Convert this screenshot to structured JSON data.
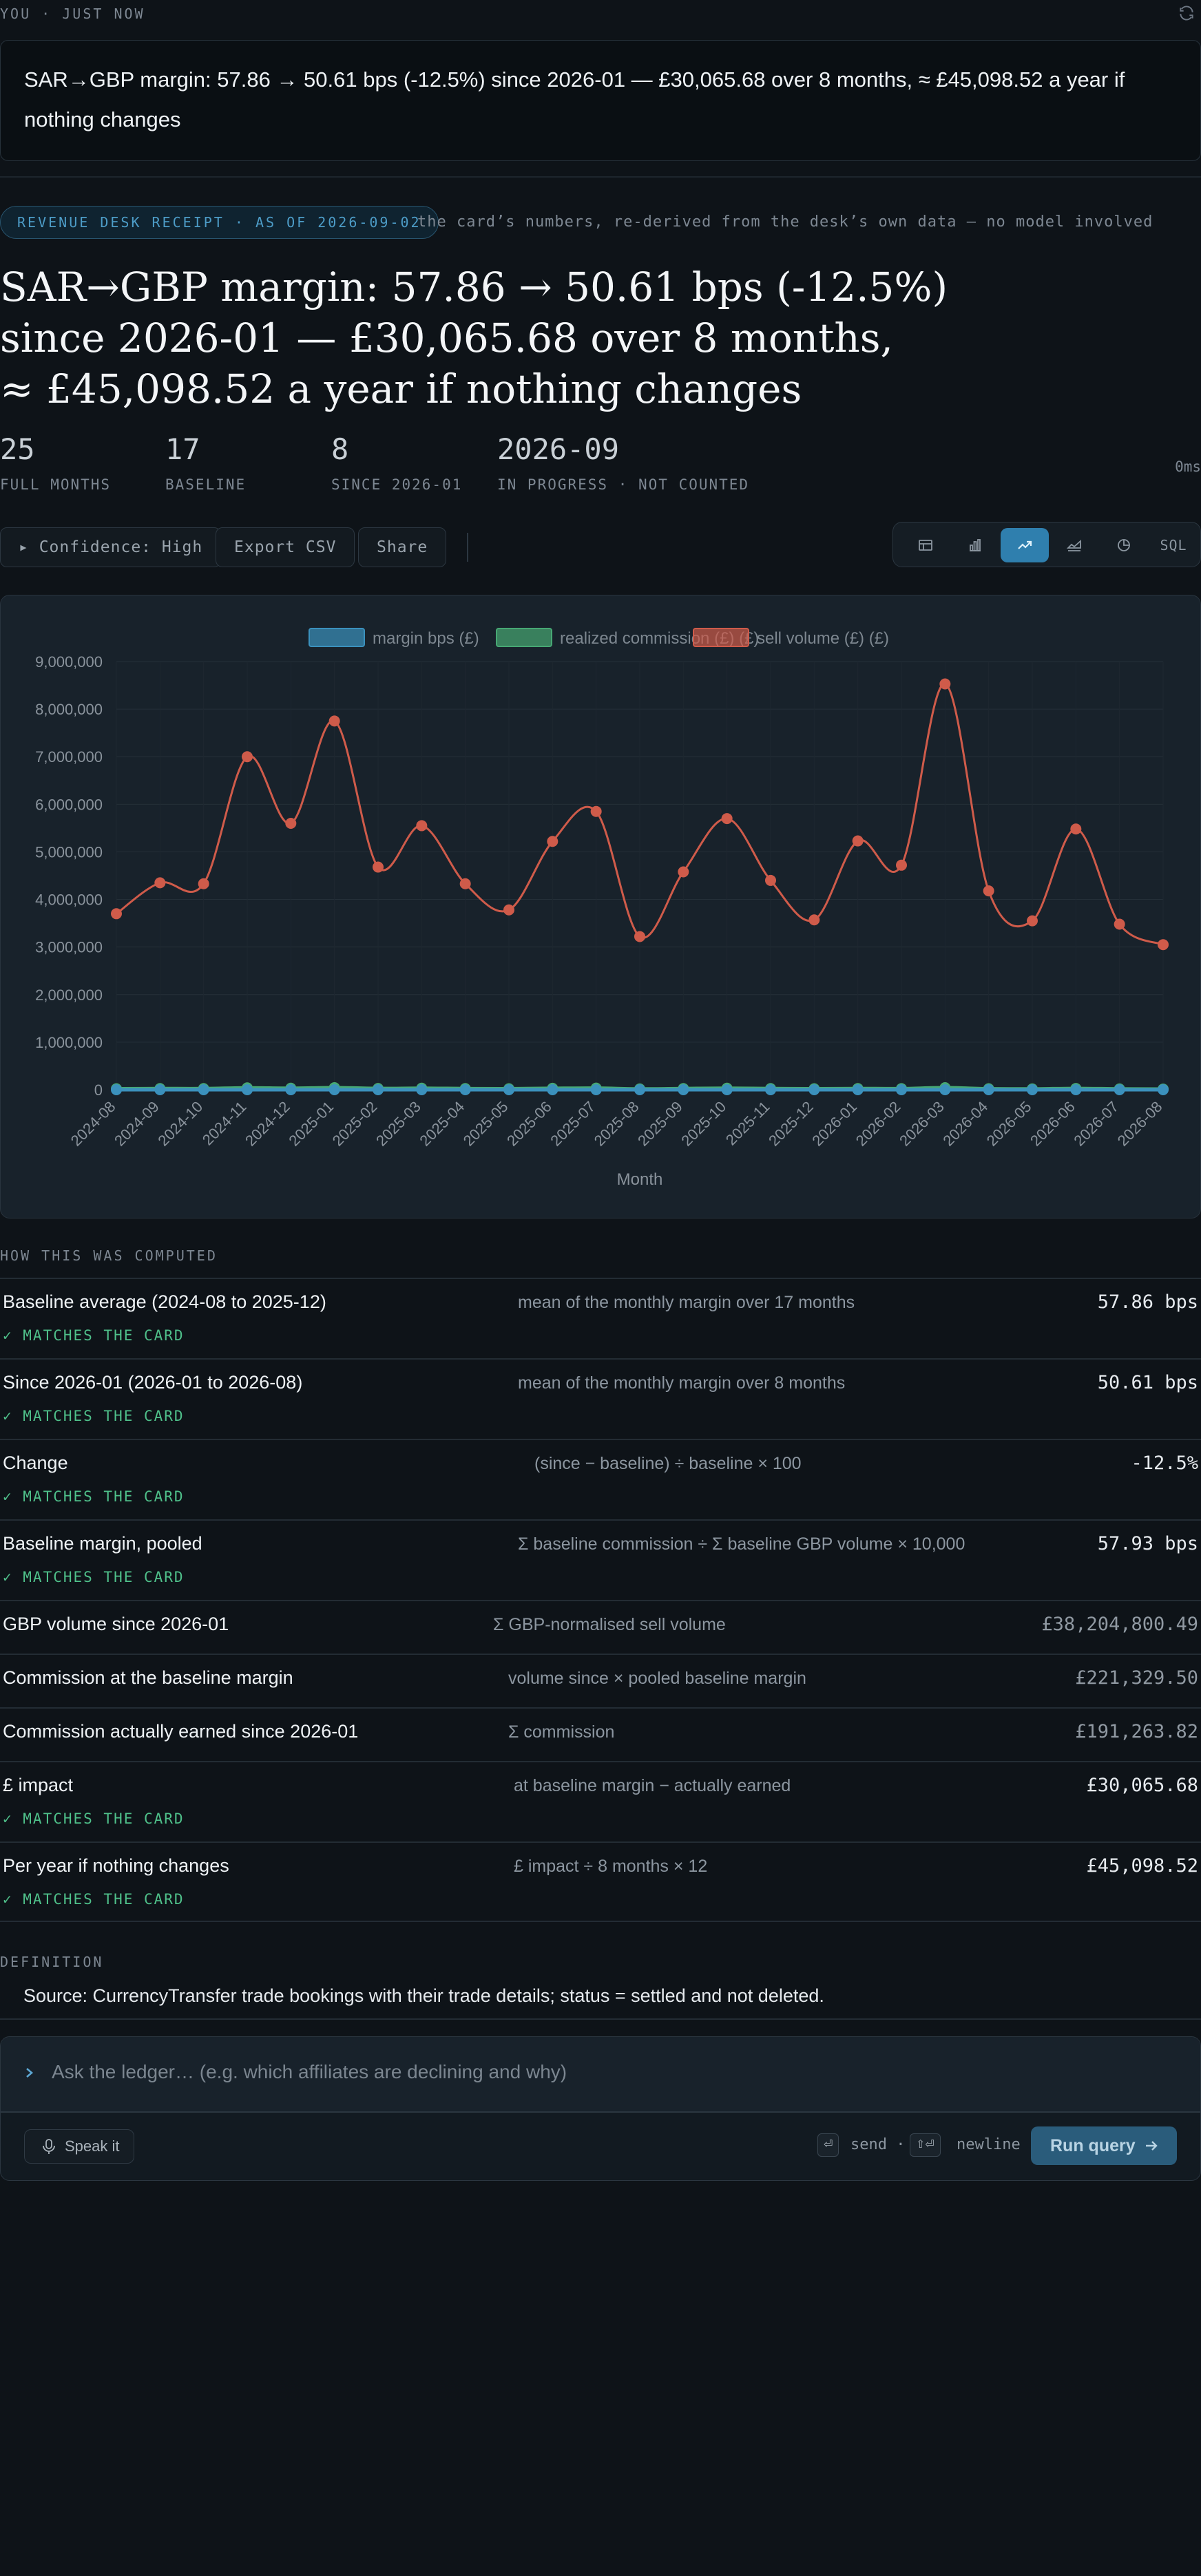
{
  "message": {
    "meta": "YOU · JUST NOW",
    "text": "SAR→GBP margin: 57.86 → 50.61 bps (-12.5%) since 2026-01 — £30,065.68 over 8 months, ≈ £45,098.52 a year if nothing changes"
  },
  "receipt": {
    "pill": "REVENUE DESK RECEIPT · AS OF 2026-09-02",
    "note": "the card’s numbers, re-derived from the desk’s own data — no model involved",
    "headline_1": "SAR→GBP margin: 57.86 → 50.61 bps (-12.5%)",
    "headline_2": "since 2026-01 — £30,065.68 over 8 months,",
    "headline_3": "≈ £45,098.52 a year if nothing changes",
    "stats": [
      {
        "value": "25",
        "label": "FULL MONTHS"
      },
      {
        "value": "17",
        "label": "BASELINE"
      },
      {
        "value": "8",
        "label": "SINCE 2026-01"
      },
      {
        "value": "2026-09",
        "label": "IN PROGRESS · NOT COUNTED"
      }
    ],
    "timing": "0ms"
  },
  "actions": {
    "confidence": "▸ Confidence: High",
    "export": "Export CSV",
    "share": "Share",
    "views": [
      {
        "icon": "table-icon",
        "active": false
      },
      {
        "icon": "bar-chart-icon",
        "active": false
      },
      {
        "icon": "line-chart-icon",
        "active": true
      },
      {
        "icon": "area-chart-icon",
        "active": false
      },
      {
        "icon": "pie-chart-icon",
        "active": false
      }
    ],
    "sql_label": "SQL"
  },
  "chart_data": {
    "type": "line",
    "x": [
      "2024-08",
      "2024-09",
      "2024-10",
      "2024-11",
      "2024-12",
      "2025-01",
      "2025-02",
      "2025-03",
      "2025-04",
      "2025-05",
      "2025-06",
      "2025-07",
      "2025-08",
      "2025-09",
      "2025-10",
      "2025-11",
      "2025-12",
      "2026-01",
      "2026-02",
      "2026-03",
      "2026-04",
      "2026-05",
      "2026-06",
      "2026-07",
      "2026-08"
    ],
    "series": [
      {
        "name": "margin bps (£)",
        "color": "#3b91bd",
        "values": [
          58,
          58,
          58,
          58,
          58,
          58,
          58,
          58,
          58,
          58,
          58,
          58,
          58,
          58,
          58,
          58,
          58,
          51,
          51,
          51,
          51,
          51,
          51,
          51,
          51
        ]
      },
      {
        "name": "realized commission (£) (£)",
        "color": "#47a874",
        "values": [
          21000,
          25000,
          25000,
          40000,
          32000,
          44000,
          27000,
          32000,
          25000,
          22000,
          30000,
          34000,
          18000,
          26000,
          33000,
          25000,
          21000,
          26000,
          24000,
          43000,
          21000,
          18000,
          28000,
          18000,
          15000
        ]
      },
      {
        "name": "sell volume (£) (£)",
        "color": "#cf5b4a",
        "values": [
          3700000,
          4350000,
          4330000,
          7000000,
          5600000,
          7750000,
          4680000,
          5550000,
          4330000,
          3780000,
          5220000,
          5850000,
          3220000,
          4580000,
          5700000,
          4400000,
          3570000,
          5230000,
          4720000,
          8530000,
          4180000,
          3550000,
          5480000,
          3480000,
          3050000
        ]
      }
    ],
    "xlabel": "Month",
    "ylabel": "",
    "ylim": [
      0,
      9000000
    ],
    "yticks": [
      "0",
      "1,000,000",
      "2,000,000",
      "3,000,000",
      "4,000,000",
      "5,000,000",
      "6,000,000",
      "7,000,000",
      "8,000,000",
      "9,000,000"
    ],
    "grid": true,
    "legend": "top-center"
  },
  "computed": {
    "section_label": "HOW THIS WAS COMPUTED",
    "rows": [
      {
        "label": "Baseline average (2024-08 to 2025-12)",
        "method": "mean of the monthly margin over 17 months",
        "value": "57.86 bps",
        "match": "✓ MATCHES THE CARD"
      },
      {
        "label": "Since 2026-01 (2026-01 to 2026-08)",
        "method": "mean of the monthly margin over 8 months",
        "value": "50.61 bps",
        "match": "✓ MATCHES THE CARD"
      },
      {
        "label": "Change",
        "method": "(since − baseline) ÷ baseline × 100",
        "value": "-12.5%",
        "match": "✓ MATCHES THE CARD"
      },
      {
        "label": "Baseline margin, pooled",
        "method": "Σ baseline commission ÷ Σ baseline GBP volume × 10,000",
        "value": "57.93 bps",
        "match": "✓ MATCHES THE CARD"
      },
      {
        "label": "GBP volume since 2026-01",
        "method": "Σ GBP-normalised sell volume",
        "value": "£38,204,800.49",
        "match": ""
      },
      {
        "label": "Commission at the baseline margin",
        "method": "volume since × pooled baseline margin",
        "value": "£221,329.50",
        "match": ""
      },
      {
        "label": "Commission actually earned since 2026-01",
        "method": "Σ commission",
        "value": "£191,263.82",
        "match": ""
      },
      {
        "label": "£ impact",
        "method": "at baseline margin − actually earned",
        "value": "£30,065.68",
        "match": "✓ MATCHES THE CARD"
      },
      {
        "label": "Per year if nothing changes",
        "method": "£ impact ÷ 8 months × 12",
        "value": "£45,098.52",
        "match": "✓ MATCHES THE CARD"
      }
    ]
  },
  "definition": {
    "label": "DEFINITION",
    "text": "Source: CurrencyTransfer trade bookings with their trade details; status = settled and not deleted."
  },
  "composer": {
    "placeholder": "Ask the ledger… (e.g. which affiliates are declining and why)",
    "speak": "Speak it",
    "send_key": "⏎",
    "send_hint": "send ·",
    "newline_key": "⇧⏎",
    "newline_hint": "newline",
    "run": "Run query"
  }
}
